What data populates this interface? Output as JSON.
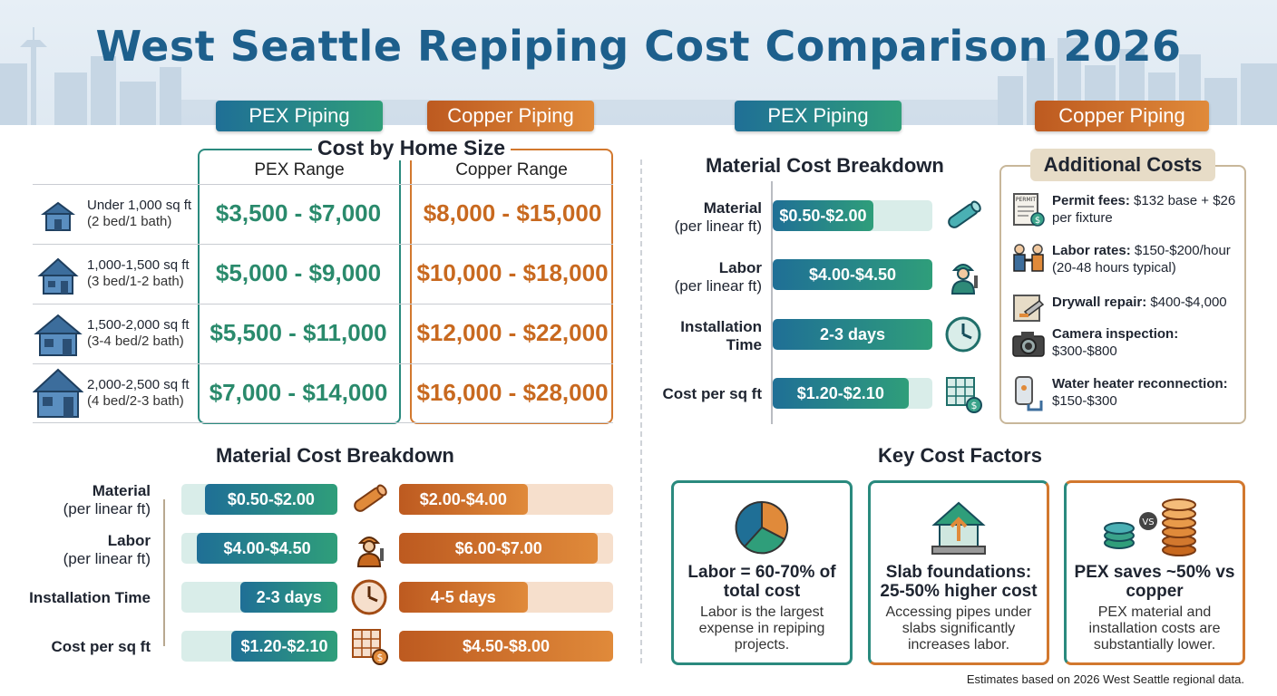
{
  "title": "West Seattle Repiping Cost Comparison 2026",
  "pills": {
    "left_pex": "PEX Piping",
    "left_copper": "Copper Piping",
    "right_pex": "PEX Piping",
    "right_copper": "Copper Piping"
  },
  "colors": {
    "title": "#1d5f8c",
    "pex_gradient": [
      "#1f6f96",
      "#2f9e7a"
    ],
    "copper_gradient": [
      "#bd5a20",
      "#e08a3a"
    ],
    "pex_text": "#2a8a6c",
    "copper_text": "#c8691f"
  },
  "home_size": {
    "title": "Cost by Home Size",
    "pex_header": "PEX Range",
    "copper_header": "Copper Range",
    "rows": [
      {
        "size": "Under 1,000 sq ft",
        "beds": "(2 bed/1 bath)",
        "pex": "$3,500 - $7,000",
        "copper": "$8,000 - $15,000",
        "icon": "small-house-icon"
      },
      {
        "size": "1,000-1,500 sq ft",
        "beds": "(3 bed/1-2 bath)",
        "pex": "$5,000 - $9,000",
        "copper": "$10,000 - $18,000",
        "icon": "house-icon"
      },
      {
        "size": "1,500-2,000 sq ft",
        "beds": "(3-4 bed/2 bath)",
        "pex": "$5,500 - $11,000",
        "copper": "$12,000 - $22,000",
        "icon": "medium-house-icon"
      },
      {
        "size": "2,000-2,500 sq ft",
        "beds": "(4 bed/2-3 bath)",
        "pex": "$7,000 - $14,000",
        "copper": "$16,000 - $28,000",
        "icon": "large-house-icon"
      }
    ]
  },
  "material_left": {
    "title": "Material Cost Breakdown",
    "rows": [
      {
        "label": "Material",
        "sub": "(per linear ft)",
        "pex": "$0.50-$2.00",
        "copper": "$2.00-$4.00",
        "pex_fill": 0.85,
        "copper_fill": 0.6,
        "icon": "copper-pipe-icon"
      },
      {
        "label": "Labor",
        "sub": "(per linear ft)",
        "pex": "$4.00-$4.50",
        "copper": "$6.00-$7.00",
        "pex_fill": 0.9,
        "copper_fill": 0.93,
        "icon": "plumber-icon"
      },
      {
        "label": "Installation Time",
        "sub": "",
        "pex": "2-3 days",
        "copper": "4-5 days",
        "pex_fill": 0.62,
        "copper_fill": 0.6,
        "icon": "clock-icon"
      },
      {
        "label": "Cost per sq ft",
        "sub": "",
        "pex": "$1.20-$2.10",
        "copper": "$4.50-$8.00",
        "pex_fill": 0.68,
        "copper_fill": 1.0,
        "icon": "floor-plan-cost-icon"
      }
    ]
  },
  "material_right": {
    "title": "Material Cost Breakdown",
    "rows": [
      {
        "label": "Material",
        "sub": "(per linear ft)",
        "value": "$0.50-$2.00",
        "fill": 0.63,
        "icon": "pex-pipe-icon"
      },
      {
        "label": "Labor",
        "sub": "(per linear ft)",
        "value": "$4.00-$4.50",
        "fill": 1.0,
        "icon": "plumber-icon"
      },
      {
        "label": "Installation",
        "sub": "Time",
        "value": "2-3 days",
        "fill": 1.0,
        "icon": "clock-icon"
      },
      {
        "label": "Cost per sq ft",
        "sub": "",
        "value": "$1.20-$2.10",
        "fill": 0.85,
        "icon": "floor-plan-cost-icon"
      }
    ]
  },
  "additional": {
    "title": "Additional Costs",
    "items": [
      {
        "bold": "Permit fees:",
        "text": " $132 base + $26 per fixture",
        "icon": "permit-icon",
        "icon_text": "PERMIT"
      },
      {
        "bold": "Labor rates:",
        "text": " $150-$200/hour (20-48 hours typical)",
        "icon": "handshake-icon"
      },
      {
        "bold": "Drywall repair:",
        "text": " $400-$4,000",
        "icon": "drywall-icon"
      },
      {
        "bold": "Camera inspection:",
        "text": " $300-$800",
        "icon": "camera-icon"
      },
      {
        "bold": "Water heater reconnection:",
        "text": " $150-$300",
        "icon": "water-heater-icon"
      }
    ]
  },
  "key_factors": {
    "title": "Key Cost Factors",
    "cards": [
      {
        "head": "Labor = 60-70% of total cost",
        "body": "Labor is the largest expense in repiping projects.",
        "icon": "pie-chart-icon"
      },
      {
        "head": "Slab foundations: 25-50% higher cost",
        "body": "Accessing pipes under slabs significantly increases labor.",
        "icon": "house-slab-icon"
      },
      {
        "head": "PEX saves ~50% vs copper",
        "body": "PEX material and installation costs are substantially lower.",
        "icon": "coins-vs-icon",
        "badge": "VS"
      }
    ]
  },
  "footnote": "Estimates based on 2026 West Seattle regional data."
}
